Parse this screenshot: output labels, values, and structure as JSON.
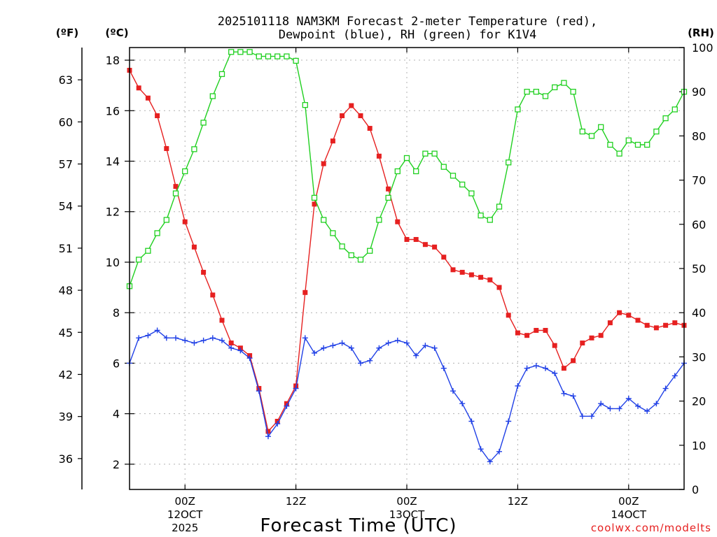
{
  "chart_data": {
    "type": "line",
    "title_line1": "2025101118 NAM3KM Forecast 2-meter Temperature (red),",
    "title_line2": "Dewpoint (blue), RH (green) for K1V4",
    "xlabel": "Forecast Time (UTC)",
    "credit": "coolwx.com/modelts",
    "left_outer_unit": "(ºF)",
    "left_inner_unit": "(ºC)",
    "right_unit": "(RH)",
    "x_range_hours": [
      0,
      60
    ],
    "c_range": [
      1.0,
      18.5
    ],
    "rh_range": [
      0,
      100
    ],
    "x_ticks": [
      {
        "hour": 6,
        "line1": "00Z",
        "line2": "12OCT",
        "line3": "2025"
      },
      {
        "hour": 18,
        "line1": "12Z",
        "line2": "",
        "line3": ""
      },
      {
        "hour": 30,
        "line1": "00Z",
        "line2": "13OCT",
        "line3": ""
      },
      {
        "hour": 42,
        "line1": "12Z",
        "line2": "",
        "line3": ""
      },
      {
        "hour": 54,
        "line1": "00Z",
        "line2": "14OCT",
        "line3": ""
      }
    ],
    "celsius_ticks": [
      2,
      4,
      6,
      8,
      10,
      12,
      14,
      16,
      18
    ],
    "fahrenheit_ticks": [
      36,
      39,
      42,
      45,
      48,
      51,
      54,
      57,
      60,
      63
    ],
    "rh_ticks": [
      0,
      10,
      20,
      30,
      40,
      50,
      60,
      70,
      80,
      90,
      100
    ],
    "series": [
      {
        "name": "Temperature",
        "unit": "C",
        "color": "#e62020",
        "marker": "filled-square",
        "x": [
          0,
          1,
          2,
          3,
          4,
          5,
          6,
          7,
          8,
          9,
          10,
          11,
          12,
          13,
          14,
          15,
          16,
          17,
          18,
          19,
          20,
          21,
          22,
          23,
          24,
          25,
          26,
          27,
          28,
          29,
          30,
          31,
          32,
          33,
          34,
          35,
          36,
          37,
          38,
          39,
          40,
          41,
          42,
          43,
          44,
          45,
          46,
          47,
          48,
          49,
          50,
          51,
          52,
          53,
          54,
          55,
          56,
          57,
          58,
          59,
          60
        ],
        "values": [
          17.6,
          16.9,
          16.5,
          15.8,
          14.5,
          13.0,
          11.6,
          10.6,
          9.6,
          8.7,
          7.7,
          6.8,
          6.6,
          6.3,
          5.0,
          3.3,
          3.7,
          4.4,
          5.1,
          8.8,
          12.3,
          13.9,
          14.8,
          15.8,
          16.2,
          15.8,
          15.3,
          14.2,
          12.9,
          11.6,
          10.9,
          10.9,
          10.7,
          10.6,
          10.2,
          9.7,
          9.6,
          9.5,
          9.4,
          9.3,
          9.0,
          7.9,
          7.2,
          7.1,
          7.3,
          7.3,
          6.7,
          5.8,
          6.1,
          6.8,
          7.0,
          7.1,
          7.6,
          8.0,
          7.9,
          7.7,
          7.5,
          7.4,
          7.5,
          7.6,
          7.5
        ]
      },
      {
        "name": "Dewpoint",
        "unit": "C",
        "color": "#2040e6",
        "marker": "plus",
        "x": [
          0,
          1,
          2,
          3,
          4,
          5,
          6,
          7,
          8,
          9,
          10,
          11,
          12,
          13,
          14,
          15,
          16,
          17,
          18,
          19,
          20,
          21,
          22,
          23,
          24,
          25,
          26,
          27,
          28,
          29,
          30,
          31,
          32,
          33,
          34,
          35,
          36,
          37,
          38,
          39,
          40,
          41,
          42,
          43,
          44,
          45,
          46,
          47,
          48,
          49,
          50,
          51,
          52,
          53,
          54,
          55,
          56,
          57,
          58,
          59,
          60
        ],
        "values": [
          6.0,
          7.0,
          7.1,
          7.3,
          7.0,
          7.0,
          6.9,
          6.8,
          6.9,
          7.0,
          6.9,
          6.6,
          6.5,
          6.2,
          4.9,
          3.1,
          3.6,
          4.3,
          5.0,
          7.0,
          6.4,
          6.6,
          6.7,
          6.8,
          6.6,
          6.0,
          6.1,
          6.6,
          6.8,
          6.9,
          6.8,
          6.3,
          6.7,
          6.6,
          5.8,
          4.9,
          4.4,
          3.7,
          2.6,
          2.1,
          2.5,
          3.7,
          5.1,
          5.8,
          5.9,
          5.8,
          5.6,
          4.8,
          4.7,
          3.9,
          3.9,
          4.4,
          4.2,
          4.2,
          4.6,
          4.3,
          4.1,
          4.4,
          5.0,
          5.5,
          6.0
        ]
      },
      {
        "name": "RH",
        "unit": "%",
        "color": "#20d020",
        "marker": "open-square",
        "x": [
          0,
          1,
          2,
          3,
          4,
          5,
          6,
          7,
          8,
          9,
          10,
          11,
          12,
          13,
          14,
          15,
          16,
          17,
          18,
          19,
          20,
          21,
          22,
          23,
          24,
          25,
          26,
          27,
          28,
          29,
          30,
          31,
          32,
          33,
          34,
          35,
          36,
          37,
          38,
          39,
          40,
          41,
          42,
          43,
          44,
          45,
          46,
          47,
          48,
          49,
          50,
          51,
          52,
          53,
          54,
          55,
          56,
          57,
          58,
          59,
          60
        ],
        "values": [
          46,
          52,
          54,
          58,
          61,
          67,
          72,
          77,
          83,
          89,
          94,
          99,
          99,
          99,
          98,
          98,
          98,
          98,
          97,
          87,
          66,
          61,
          58,
          55,
          53,
          52,
          54,
          61,
          66,
          72,
          75,
          72,
          76,
          76,
          73,
          71,
          69,
          67,
          62,
          61,
          64,
          74,
          86,
          90,
          90,
          89,
          91,
          92,
          90,
          81,
          80,
          82,
          78,
          76,
          79,
          78,
          78,
          81,
          84,
          86,
          90
        ]
      }
    ]
  }
}
